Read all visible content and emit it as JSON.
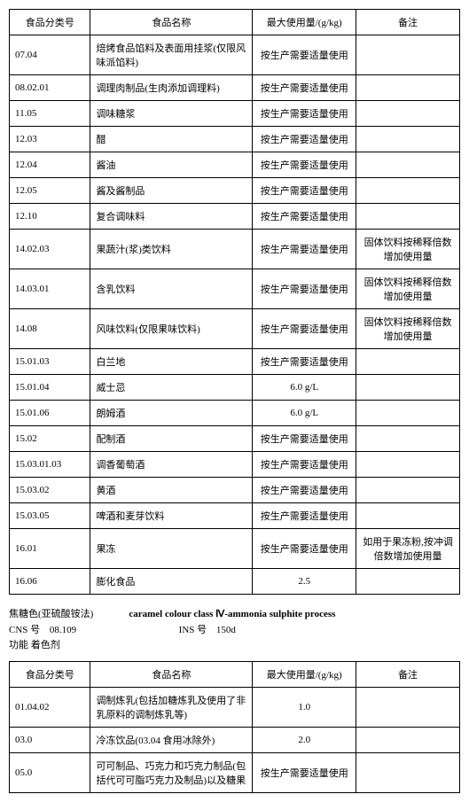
{
  "table1": {
    "headers": [
      "食品分类号",
      "食品名称",
      "最大使用量/(g/kg)",
      "备注"
    ],
    "rows": [
      [
        "07.04",
        "焙烤食品馅料及表面用挂浆(仅限风味派馅料)",
        "按生产需要适量使用",
        ""
      ],
      [
        "08.02.01",
        "调理肉制品(生肉添加调理料)",
        "按生产需要适量使用",
        ""
      ],
      [
        "11.05",
        "调味糖浆",
        "按生产需要适量使用",
        ""
      ],
      [
        "12.03",
        "醋",
        "按生产需要适量使用",
        ""
      ],
      [
        "12.04",
        "酱油",
        "按生产需要适量使用",
        ""
      ],
      [
        "12.05",
        "酱及酱制品",
        "按生产需要适量使用",
        ""
      ],
      [
        "12.10",
        "复合调味料",
        "按生产需要适量使用",
        ""
      ],
      [
        "14.02.03",
        "果蔬汁(浆)类饮料",
        "按生产需要适量使用",
        "固体饮料按稀释倍数增加使用量"
      ],
      [
        "14.03.01",
        "含乳饮料",
        "按生产需要适量使用",
        "固体饮料按稀释倍数增加使用量"
      ],
      [
        "14.08",
        "风味饮料(仅限果味饮料)",
        "按生产需要适量使用",
        "固体饮料按稀释倍数增加使用量"
      ],
      [
        "15.01.03",
        "白兰地",
        "按生产需要适量使用",
        ""
      ],
      [
        "15.01.04",
        "威士忌",
        "6.0 g/L",
        ""
      ],
      [
        "15.01.06",
        "朗姆酒",
        "6.0 g/L",
        ""
      ],
      [
        "15.02",
        "配制酒",
        "按生产需要适量使用",
        ""
      ],
      [
        "15.03.01.03",
        "调香葡萄酒",
        "按生产需要适量使用",
        ""
      ],
      [
        "15.03.02",
        "黄酒",
        "按生产需要适量使用",
        ""
      ],
      [
        "15.03.05",
        "啤酒和麦芽饮料",
        "按生产需要适量使用",
        ""
      ],
      [
        "16.01",
        "果冻",
        "按生产需要适量使用",
        "如用于果冻粉,按冲调倍数增加使用量"
      ],
      [
        "16.06",
        "膨化食品",
        "2.5",
        ""
      ]
    ]
  },
  "section": {
    "cn_name": "焦糖色(亚硫酸铵法)",
    "en_name": "caramel colour class Ⅳ-ammonia sulphite process",
    "cns_label": "CNS 号",
    "cns_value": "08.109",
    "ins_label": "INS 号",
    "ins_value": "150d",
    "func_label": "功能",
    "func_value": "着色剂"
  },
  "table2": {
    "headers": [
      "食品分类号",
      "食品名称",
      "最大使用量/(g/kg)",
      "备注"
    ],
    "rows": [
      [
        "01.04.02",
        "调制炼乳(包括加糖炼乳及使用了非乳原料的调制炼乳等)",
        "1.0",
        ""
      ],
      [
        "03.0",
        "冷冻饮品(03.04 食用冰除外)",
        "2.0",
        ""
      ],
      [
        "05.0",
        "可可制品、巧克力和巧克力制品(包括代可可脂巧克力及制品)以及糖果",
        "按生产需要适量使用",
        ""
      ]
    ]
  }
}
